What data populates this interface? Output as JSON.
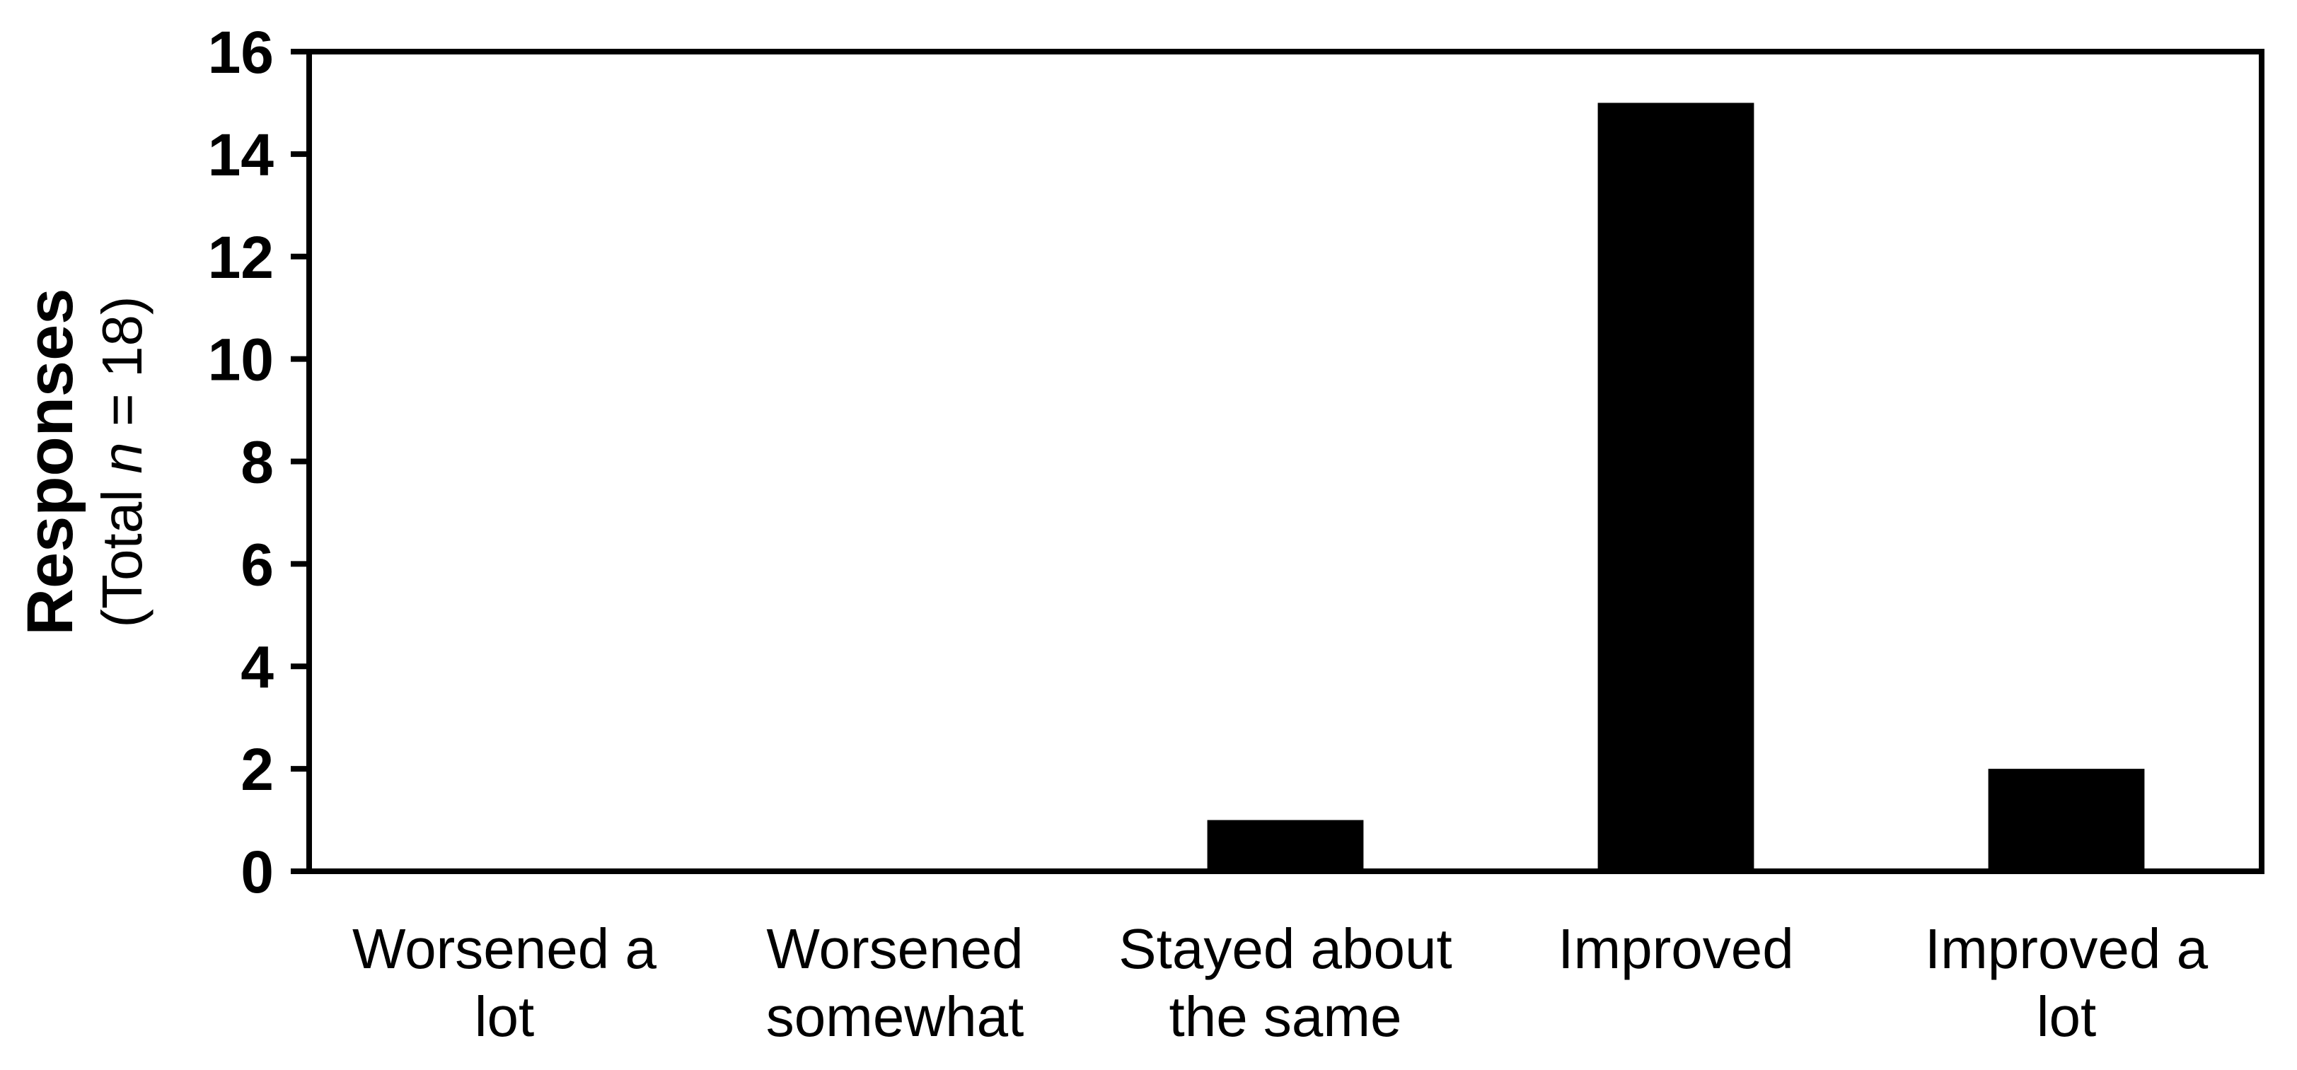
{
  "chart_data": {
    "type": "bar",
    "categories": [
      [
        "Worsened a",
        "lot"
      ],
      [
        "Worsened",
        "somewhat"
      ],
      [
        "Stayed about",
        "the same"
      ],
      [
        "Improved"
      ],
      [
        "Improved a",
        "lot"
      ]
    ],
    "values": [
      0,
      0,
      1,
      15,
      2
    ],
    "ylabel": {
      "main": "Responses",
      "sub_prefix": "(Total ",
      "sub_italic": "n",
      "sub_suffix": " = 18)"
    },
    "ylim": [
      0,
      16
    ],
    "yticks": [
      0,
      2,
      4,
      6,
      8,
      10,
      12,
      14,
      16
    ],
    "grid": false,
    "bar_color": "#000000",
    "axis_color": "#000000"
  }
}
